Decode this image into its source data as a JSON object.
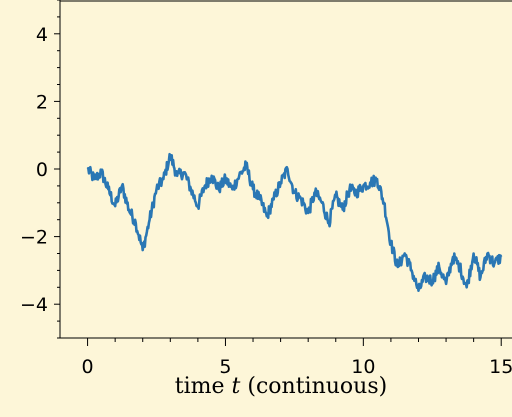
{
  "chart_data": {
    "type": "line",
    "title": "",
    "xlabel_prefix": "time ",
    "xlabel_var": "t",
    "xlabel_suffix": " (continuous)",
    "ylabel": "",
    "xlim": [
      -1.0,
      15.5
    ],
    "ylim": [
      -5,
      5
    ],
    "xticks": [
      0,
      5,
      10,
      15
    ],
    "xtick_labels": [
      "0",
      "5",
      "10",
      "15"
    ],
    "xminor": [
      1,
      2,
      3,
      4,
      6,
      7,
      8,
      9,
      11,
      12,
      13,
      14
    ],
    "yticks": [
      -4,
      -2,
      0,
      2,
      4
    ],
    "ytick_labels": [
      "−4",
      "−2",
      "0",
      "2",
      "4"
    ],
    "yminor": [
      -5,
      -4.5,
      -3.5,
      -3,
      -2.5,
      -1.5,
      -1,
      -0.5,
      0.5,
      1,
      1.5,
      2.5,
      3,
      3.5,
      4.5,
      5
    ],
    "grid": false,
    "series": [
      {
        "color": "#2a77b4",
        "x": [
          0,
          0.25,
          0.5,
          0.75,
          1.0,
          1.25,
          1.5,
          1.75,
          2.0,
          2.25,
          2.5,
          2.75,
          3.0,
          3.25,
          3.5,
          3.75,
          4.0,
          4.25,
          4.5,
          4.75,
          5.0,
          5.25,
          5.5,
          5.75,
          6.0,
          6.25,
          6.5,
          6.75,
          7.0,
          7.25,
          7.5,
          7.75,
          8.0,
          8.25,
          8.5,
          8.75,
          9.0,
          9.25,
          9.5,
          9.75,
          10.0,
          10.25,
          10.5,
          10.75,
          11.0,
          11.25,
          11.5,
          11.75,
          12.0,
          12.25,
          12.5,
          12.75,
          13.0,
          13.25,
          13.5,
          13.75,
          14.0,
          14.25,
          14.5,
          14.75,
          15.0
        ],
        "y": [
          0.0,
          -0.3,
          -0.1,
          -0.6,
          -1.1,
          -0.5,
          -1.2,
          -1.6,
          -2.4,
          -1.5,
          -0.6,
          -0.3,
          0.4,
          -0.2,
          -0.1,
          -0.6,
          -1.1,
          -0.5,
          -0.2,
          -0.6,
          -0.3,
          -0.6,
          -0.2,
          0.1,
          -0.6,
          -0.9,
          -1.4,
          -0.9,
          -0.4,
          0.0,
          -0.7,
          -0.9,
          -1.3,
          -0.7,
          -1.0,
          -1.6,
          -0.8,
          -1.2,
          -0.6,
          -0.7,
          -0.5,
          -0.4,
          -0.3,
          -1.0,
          -2.2,
          -2.9,
          -2.5,
          -3.0,
          -3.6,
          -3.2,
          -3.3,
          -2.9,
          -3.4,
          -2.6,
          -2.9,
          -3.5,
          -2.5,
          -3.2,
          -2.5,
          -2.8,
          -2.6
        ]
      }
    ]
  }
}
